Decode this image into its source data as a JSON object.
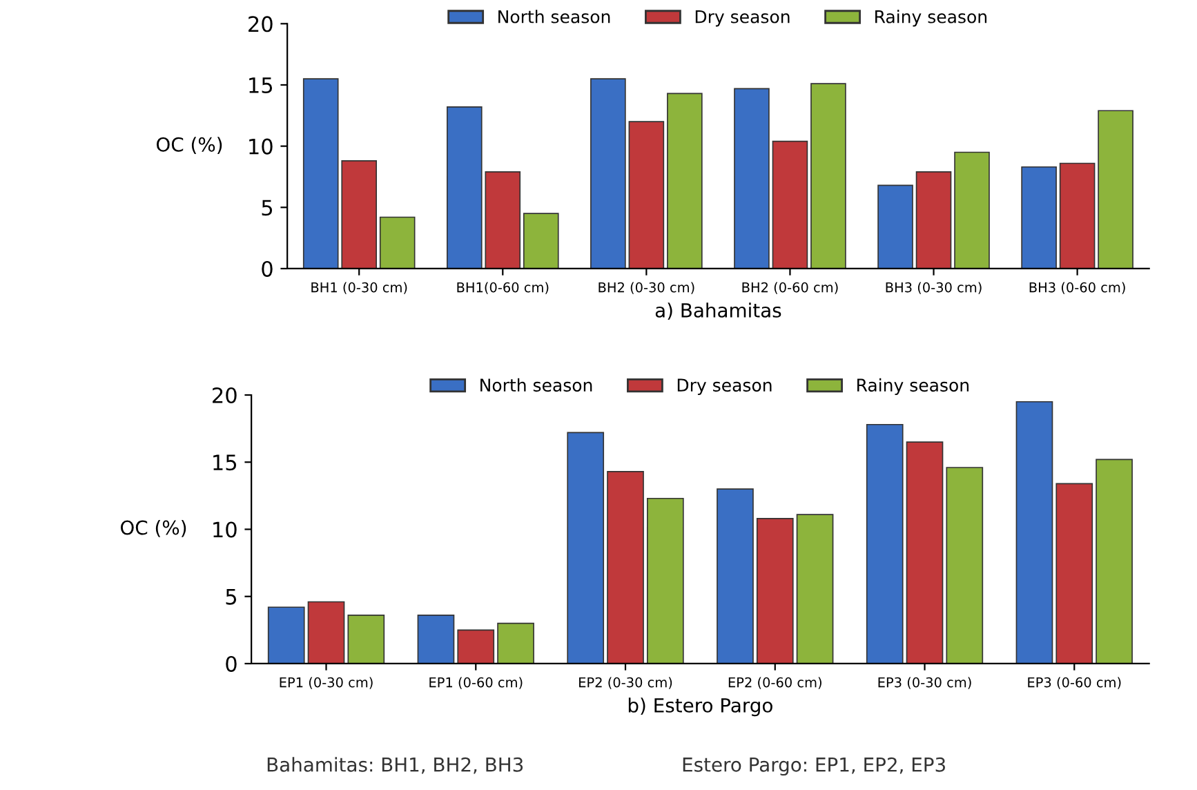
{
  "chart_data": [
    {
      "type": "bar",
      "xlabel": "a) Bahamitas",
      "ylabel": "OC (%)",
      "categories": [
        "BH1 (0-30 cm)",
        "BH1(0-60 cm)",
        "BH2 (0-30 cm)",
        "BH2 (0-60 cm)",
        "BH3 (0-30 cm)",
        "BH3 (0-60 cm)"
      ],
      "series": [
        {
          "name": "North season",
          "color": "#3a6fc4",
          "values": [
            15.5,
            13.2,
            15.5,
            14.7,
            6.8,
            8.3
          ]
        },
        {
          "name": "Dry season",
          "color": "#c0393b",
          "values": [
            8.8,
            7.9,
            12.0,
            10.4,
            7.9,
            8.6
          ]
        },
        {
          "name": "Rainy season",
          "color": "#8db43c",
          "values": [
            4.2,
            4.5,
            14.3,
            15.1,
            9.5,
            12.9
          ]
        }
      ],
      "ylim": [
        0,
        20
      ],
      "yticks": [
        0,
        5,
        10,
        15,
        20
      ],
      "grid": false,
      "legend": "top"
    },
    {
      "type": "bar",
      "xlabel": "b) Estero Pargo",
      "ylabel": "OC (%)",
      "categories": [
        "EP1 (0-30 cm)",
        "EP1 (0-60 cm)",
        "EP2 (0-30 cm)",
        "EP2 (0-60 cm)",
        "EP3 (0-30 cm)",
        "EP3 (0-60 cm)"
      ],
      "series": [
        {
          "name": "North season",
          "color": "#3a6fc4",
          "values": [
            4.2,
            3.6,
            17.2,
            13.0,
            17.8,
            19.5
          ]
        },
        {
          "name": "Dry season",
          "color": "#c0393b",
          "values": [
            4.6,
            2.5,
            14.3,
            10.8,
            16.5,
            13.4
          ]
        },
        {
          "name": "Rainy season",
          "color": "#8db43c",
          "values": [
            3.6,
            3.0,
            12.3,
            11.1,
            14.6,
            15.2
          ]
        }
      ],
      "ylim": [
        0,
        20
      ],
      "yticks": [
        0,
        5,
        10,
        15,
        20
      ],
      "grid": false,
      "legend": "top",
      "annotations": [
        "Bahamitas: BH1, BH2, BH3",
        "Estero Pargo: EP1, EP2, EP3"
      ]
    }
  ]
}
